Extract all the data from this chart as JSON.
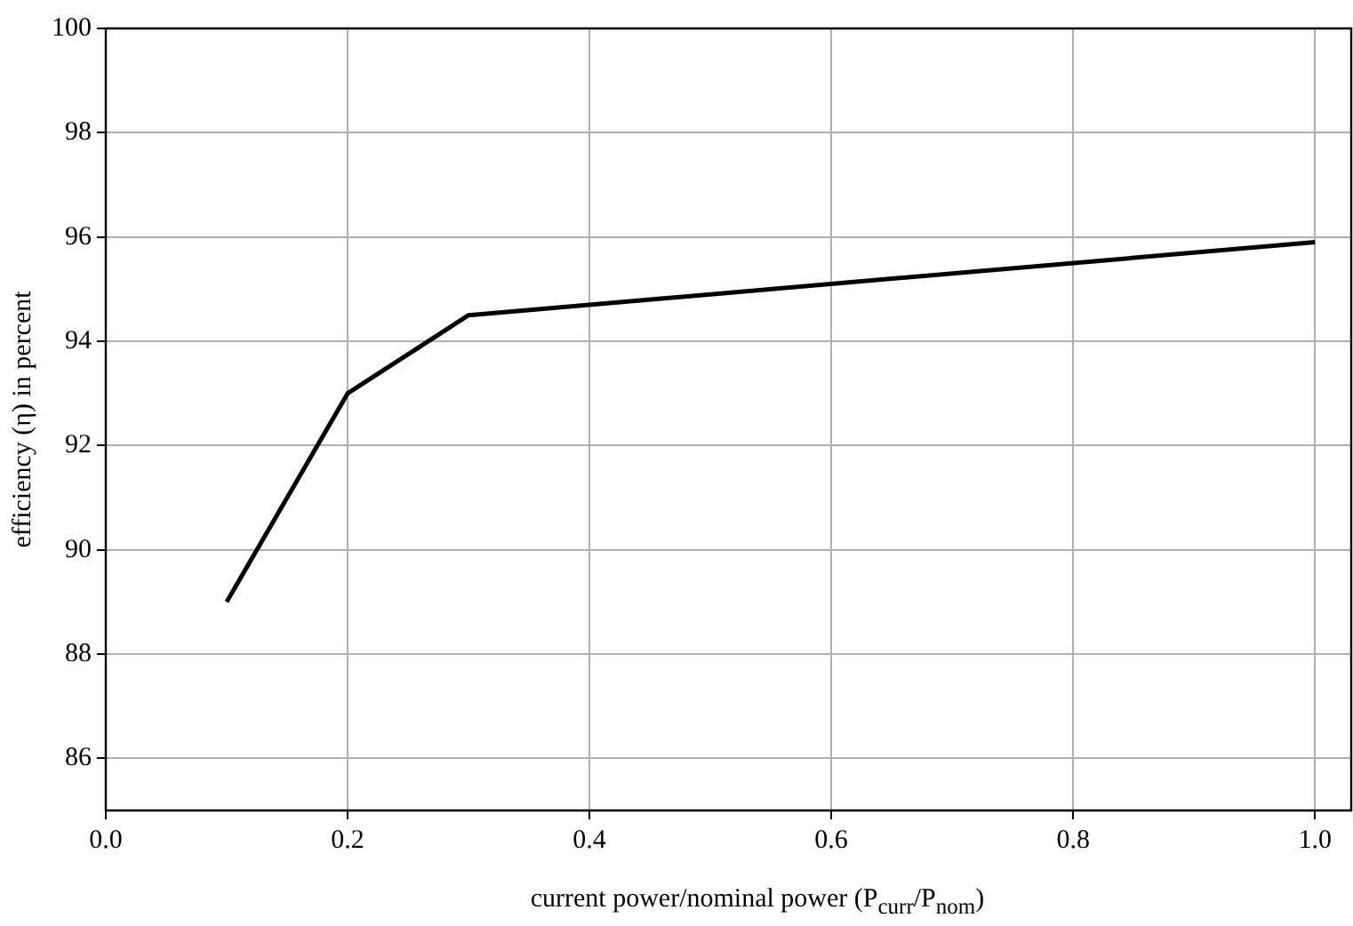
{
  "chart_data": {
    "type": "line",
    "xlabel": "current power/nominal power (P$_{curr}$/P$_{nom}$)",
    "ylabel": "efficiency (η) in percent",
    "series": [
      {
        "color": "#000000",
        "x": [
          0.1,
          0.2,
          0.3,
          1.0
        ],
        "values": [
          89,
          93,
          94.5,
          95.9
        ]
      }
    ],
    "xlim": [
      0,
      1.03
    ],
    "ylim": [
      85,
      100
    ],
    "xticks": [
      {
        "value": 0,
        "label": "0.0"
      },
      {
        "value": 0.2,
        "label": "0.2"
      },
      {
        "value": 0.4,
        "label": "0.4"
      },
      {
        "value": 0.6,
        "label": "0.6"
      },
      {
        "value": 0.8,
        "label": "0.8"
      },
      {
        "value": 1,
        "label": "1.0"
      }
    ],
    "yticks": [
      86,
      88,
      90,
      92,
      94,
      96,
      98,
      100
    ],
    "grid": true,
    "legend": false,
    "marker": "none",
    "line_style": "solid"
  }
}
